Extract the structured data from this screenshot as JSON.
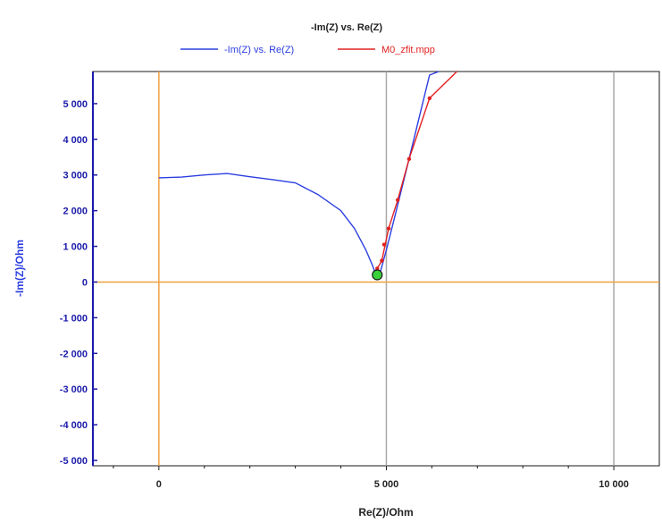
{
  "chart_data": {
    "type": "line",
    "title": "-Im(Z) vs. Re(Z)",
    "xlabel": "Re(Z)/Ohm",
    "ylabel": "-Im(Z)/Ohm",
    "xlim": [
      -1450,
      11000
    ],
    "ylim": [
      -5150,
      5900
    ],
    "x_ticks": [
      {
        "value": 0,
        "label": "0"
      },
      {
        "value": 5000,
        "label": "5 000"
      },
      {
        "value": 10000,
        "label": "10 000"
      }
    ],
    "y_ticks": [
      {
        "value": 5000,
        "label": "5 000"
      },
      {
        "value": 4000,
        "label": "4 000"
      },
      {
        "value": 3000,
        "label": "3 000"
      },
      {
        "value": 2000,
        "label": "2 000"
      },
      {
        "value": 1000,
        "label": "1 000"
      },
      {
        "value": 0,
        "label": "0"
      },
      {
        "value": -1000,
        "label": "-1 000"
      },
      {
        "value": -2000,
        "label": "-2 000"
      },
      {
        "value": -3000,
        "label": "-3 000"
      },
      {
        "value": -4000,
        "label": "-4 000"
      },
      {
        "value": -5000,
        "label": "-5 000"
      }
    ],
    "legend_position": "top",
    "series": [
      {
        "name": "-Im(Z) vs. Re(Z)",
        "color": "#2b3ee0",
        "x": [
          0,
          500,
          1000,
          1500,
          2000,
          2500,
          3000,
          3500,
          4000,
          4300,
          4550,
          4700,
          4780,
          4850,
          5000,
          5200,
          5450,
          5700,
          5950,
          6150
        ],
        "y": [
          2920,
          2940,
          3000,
          3040,
          2950,
          2870,
          2780,
          2450,
          2000,
          1500,
          900,
          450,
          150,
          200,
          900,
          1900,
          3200,
          4500,
          5800,
          6000
        ]
      },
      {
        "name": "M0_zfit.mpp",
        "color": "#e22020",
        "x": [
          4800,
          4900,
          5050,
          5250,
          5500,
          5950,
          6550
        ],
        "y": [
          380,
          600,
          1500,
          2300,
          3450,
          5150,
          6000
        ],
        "markers": [
          {
            "x": 4800,
            "y": 380
          },
          {
            "x": 4900,
            "y": 600
          },
          {
            "x": 4950,
            "y": 1050
          },
          {
            "x": 5050,
            "y": 1500
          },
          {
            "x": 5250,
            "y": 2300
          },
          {
            "x": 5500,
            "y": 3450
          },
          {
            "x": 5950,
            "y": 5150
          }
        ]
      }
    ],
    "reference_lines": {
      "color": "#f0a040",
      "x": 0,
      "y": 0
    },
    "grid_lines": {
      "color": "#a8a8a8",
      "x": [
        5000,
        10000
      ]
    },
    "highlight_point": {
      "x": 4800,
      "y": 200,
      "color": "#3ad13a"
    }
  }
}
